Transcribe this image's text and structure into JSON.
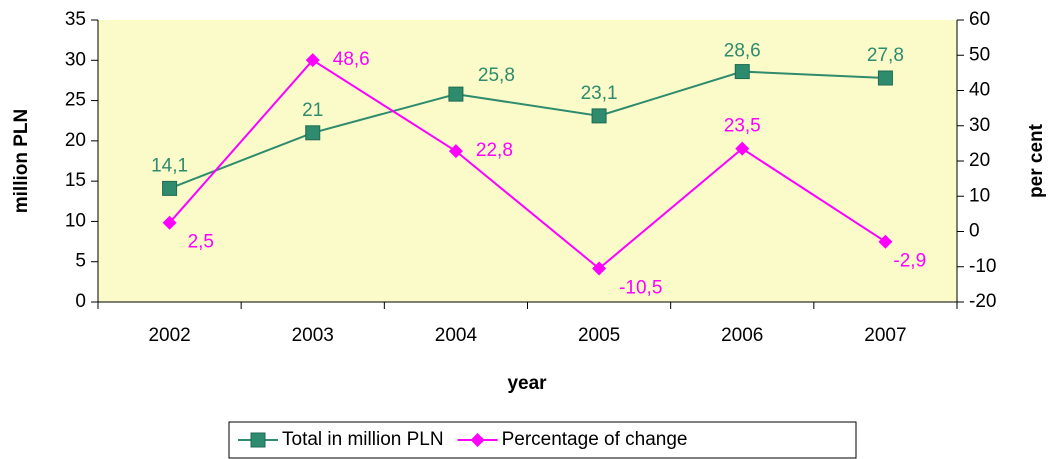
{
  "chart_data": {
    "type": "line",
    "categories": [
      "2002",
      "2003",
      "2004",
      "2005",
      "2006",
      "2007"
    ],
    "series": [
      {
        "name": "Total in million PLN",
        "color": "#2e8b6e",
        "marker": "square",
        "values": [
          14.1,
          21,
          25.8,
          23.1,
          28.6,
          27.8
        ],
        "value_labels": [
          "14,1",
          "21",
          "25,8",
          "23,1",
          "28,6",
          "27,8"
        ]
      },
      {
        "name": "Percentage of change",
        "color": "#ff00ff",
        "marker": "diamond",
        "axis": "y2",
        "values": [
          2.5,
          48.6,
          22.8,
          -10.5,
          23.5,
          -2.9
        ],
        "value_labels": [
          "2,5",
          "48,6",
          "22,8",
          "-10,5",
          "23,5",
          "-2,9"
        ]
      }
    ],
    "xlabel": "year",
    "ylabel": "million PLN",
    "y2label": "per cent",
    "ylim": [
      0,
      35
    ],
    "yticks": [
      0,
      5,
      10,
      15,
      20,
      25,
      30,
      35
    ],
    "y2lim": [
      -20,
      60
    ],
    "y2ticks": [
      -20,
      -10,
      0,
      10,
      20,
      30,
      40,
      50,
      60
    ],
    "legend": "bottom",
    "plot_background": "#fbfbc9"
  }
}
